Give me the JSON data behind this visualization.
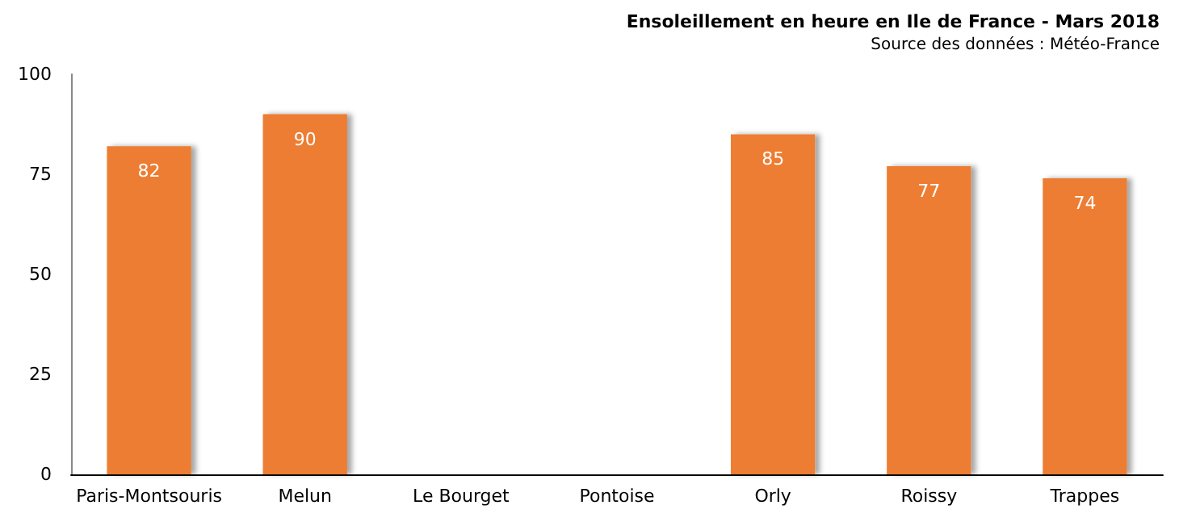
{
  "chart_data": {
    "type": "bar",
    "title": "Ensoleillement en heure en Ile de France - Mars 2018",
    "subtitle": "Source des données : Météo-France",
    "categories": [
      "Paris-Montsouris",
      "Melun",
      "Le Bourget",
      "Pontoise",
      "Orly",
      "Roissy",
      "Trappes"
    ],
    "values": [
      82,
      90,
      null,
      null,
      85,
      77,
      74
    ],
    "color": "#ed7d31",
    "ylim": [
      0,
      100
    ],
    "yticks": [
      0,
      25,
      50,
      75,
      100
    ],
    "grid": false,
    "data_labels": true
  }
}
